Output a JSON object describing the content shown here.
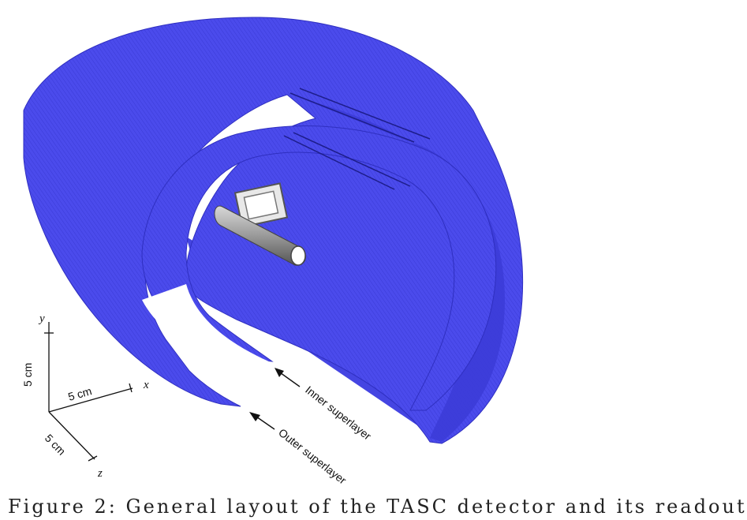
{
  "axes": {
    "x_label": "x",
    "y_label": "y",
    "z_label": "z",
    "x_scale": "5 cm",
    "y_scale": "5 cm",
    "z_scale": "5 cm"
  },
  "annotations": {
    "inner": "Inner superlayer",
    "outer": "Outer superlayer"
  },
  "caption": "Figure 2: General layout of the TASC detector and its readout",
  "colors": {
    "layer": "#4b4bec",
    "layer_edge": "#2f2fc0",
    "inside": "#3c3cd8",
    "target": "#9a9a9a"
  }
}
